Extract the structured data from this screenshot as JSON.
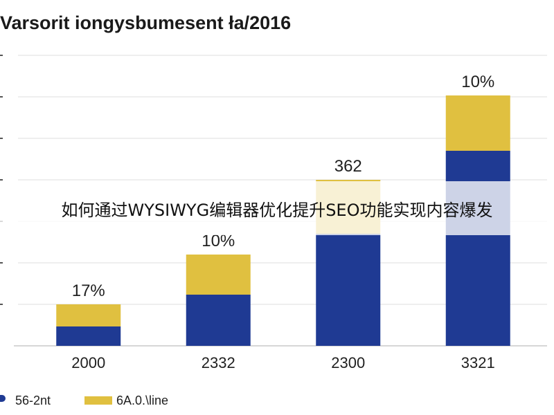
{
  "chart_data": {
    "type": "bar",
    "stacked": true,
    "title": "Varsorit iongysbumesent ła/2016",
    "categories": [
      "2000",
      "2332",
      "2300",
      "3321"
    ],
    "series": [
      {
        "name": "56-2nt",
        "color": "#1f3a93",
        "values": [
          1.4,
          3.7,
          8.1,
          14.1
        ]
      },
      {
        "name": "6A.0.\\line",
        "color": "#e0c040",
        "values": [
          1.6,
          2.9,
          3.9,
          4.0
        ]
      }
    ],
    "data_labels": [
      "17%",
      "10%",
      "362",
      "10%"
    ],
    "ylim": [
      0,
      22
    ],
    "grid": true,
    "legend_position": "bottom-left"
  },
  "overlay": {
    "text": "如何通过WYSIWYG编辑器优化提升SEO功能实现内容爆发"
  }
}
